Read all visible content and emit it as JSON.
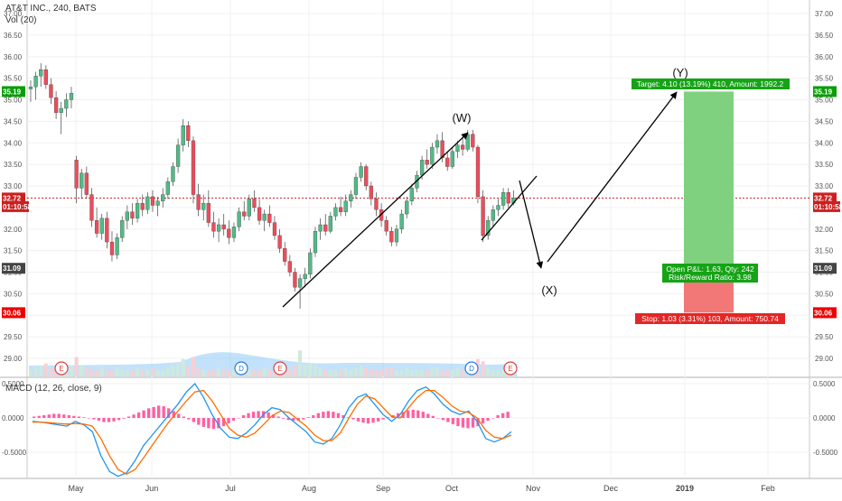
{
  "header": {
    "title": "AT&T INC., 240, BATS",
    "volume_label": "Vol (20)"
  },
  "macd_header": {
    "label": "MACD (12, 26, close, 9)"
  },
  "price_axis": {
    "ticks": [
      "37.00",
      "36.50",
      "36.00",
      "35.50",
      "35.00",
      "34.50",
      "34.00",
      "33.50",
      "33.00",
      "32.50",
      "32.00",
      "31.50",
      "31.00",
      "30.50",
      "30.00",
      "29.50",
      "29.00"
    ],
    "tags": [
      {
        "label": "35.19",
        "value": 35.19,
        "color": "#0a9e0a"
      },
      {
        "label": "32.72",
        "value": 32.72,
        "color": "#cc2020"
      },
      {
        "label": "01:10:58",
        "value": 32.52,
        "color": "#cc2020"
      },
      {
        "label": "31.09",
        "value": 31.09,
        "color": "#444444"
      },
      {
        "label": "30.06",
        "value": 30.06,
        "color": "#ee0000"
      }
    ]
  },
  "macd_axis": {
    "ticks": [
      "0.5000",
      "0.0000",
      "-0.5000"
    ]
  },
  "time_axis": {
    "labels": [
      "May",
      "Jun",
      "Jul",
      "Aug",
      "Sep",
      "Oct",
      "Nov",
      "Dec",
      "2019",
      "Feb"
    ]
  },
  "events": [
    {
      "label": "E",
      "color": "#e04040",
      "x": 68
    },
    {
      "label": "D",
      "color": "#2a7be0",
      "x": 267
    },
    {
      "label": "E",
      "color": "#e04040",
      "x": 310
    },
    {
      "label": "D",
      "color": "#2a7be0",
      "x": 522
    },
    {
      "label": "E",
      "color": "#e04040",
      "x": 565
    }
  ],
  "annotations": {
    "wave_w": "(W)",
    "wave_x": "(X)",
    "wave_y": "(Y)",
    "target_label": "Target: 4.10 (13.19%) 410, Amount: 1992.2",
    "position_label_1": "Open P&L: 1.63, Qty: 242",
    "position_label_2": "Risk/Reward Ratio: 3.98",
    "stop_label": "Stop: 1.03 (3.31%) 103, Amount: 750.74"
  },
  "colors": {
    "up": "#53b987",
    "down": "#eb4d5c",
    "target_zone": "#7fd17f",
    "stop_zone": "#f27777",
    "macd_line": "#2196f3",
    "signal_line": "#ff6d00",
    "histogram": "#ff5fa2",
    "volume": "#90caf9"
  },
  "chart_data": [
    {
      "type": "candlestick",
      "title": "AT&T INC., 240, BATS",
      "ylim": [
        28.8,
        37.1
      ],
      "last_price": 32.72,
      "ohlc": [
        [
          35.25,
          35.45,
          34.95,
          35.3
        ],
        [
          35.3,
          35.65,
          35.0,
          35.55
        ],
        [
          35.55,
          35.85,
          35.3,
          35.7
        ],
        [
          35.7,
          35.8,
          35.25,
          35.35
        ],
        [
          35.35,
          35.5,
          34.9,
          35.05
        ],
        [
          35.05,
          35.2,
          34.55,
          34.7
        ],
        [
          34.7,
          34.95,
          34.2,
          34.8
        ],
        [
          34.8,
          35.15,
          34.6,
          35.0
        ],
        [
          35.0,
          35.3,
          34.8,
          35.15
        ],
        [
          33.6,
          33.7,
          32.6,
          32.95
        ],
        [
          32.95,
          33.4,
          32.7,
          33.3
        ],
        [
          33.3,
          33.45,
          32.7,
          32.8
        ],
        [
          32.8,
          32.95,
          32.05,
          32.2
        ],
        [
          32.2,
          32.5,
          31.8,
          31.9
        ],
        [
          31.9,
          32.35,
          31.75,
          32.25
        ],
        [
          32.25,
          32.4,
          31.55,
          31.7
        ],
        [
          31.7,
          31.95,
          31.25,
          31.4
        ],
        [
          31.4,
          31.9,
          31.3,
          31.8
        ],
        [
          31.8,
          32.3,
          31.7,
          32.2
        ],
        [
          32.2,
          32.55,
          32.0,
          32.4
        ],
        [
          32.4,
          32.6,
          32.1,
          32.25
        ],
        [
          32.25,
          32.7,
          32.15,
          32.6
        ],
        [
          32.6,
          32.8,
          32.3,
          32.45
        ],
        [
          32.45,
          32.85,
          32.35,
          32.75
        ],
        [
          32.75,
          32.9,
          32.4,
          32.55
        ],
        [
          32.55,
          32.75,
          32.3,
          32.65
        ],
        [
          32.65,
          32.95,
          32.5,
          32.8
        ],
        [
          32.8,
          33.2,
          32.7,
          33.1
        ],
        [
          33.1,
          33.55,
          33.0,
          33.45
        ],
        [
          33.45,
          34.1,
          33.3,
          33.95
        ],
        [
          33.95,
          34.55,
          33.8,
          34.4
        ],
        [
          34.4,
          34.5,
          33.9,
          34.05
        ],
        [
          34.05,
          34.15,
          32.6,
          32.8
        ],
        [
          32.8,
          33.05,
          32.3,
          32.45
        ],
        [
          32.45,
          32.8,
          32.2,
          32.6
        ],
        [
          32.6,
          32.9,
          32.05,
          32.15
        ],
        [
          32.15,
          32.4,
          31.8,
          31.95
        ],
        [
          31.95,
          32.25,
          31.7,
          32.1
        ],
        [
          32.1,
          32.35,
          31.85,
          32.0
        ],
        [
          32.0,
          32.2,
          31.65,
          31.8
        ],
        [
          31.8,
          32.15,
          31.7,
          32.05
        ],
        [
          32.05,
          32.5,
          31.95,
          32.4
        ],
        [
          32.4,
          32.65,
          32.2,
          32.3
        ],
        [
          32.3,
          32.8,
          32.2,
          32.7
        ],
        [
          32.7,
          32.9,
          32.4,
          32.5
        ],
        [
          32.5,
          32.7,
          32.1,
          32.2
        ],
        [
          32.2,
          32.45,
          31.95,
          32.35
        ],
        [
          32.35,
          32.55,
          32.05,
          32.15
        ],
        [
          32.15,
          32.3,
          31.75,
          31.85
        ],
        [
          31.85,
          32.0,
          31.45,
          31.55
        ],
        [
          31.55,
          31.7,
          31.15,
          31.25
        ],
        [
          31.25,
          31.4,
          30.9,
          31.0
        ],
        [
          31.0,
          31.1,
          30.55,
          30.65
        ],
        [
          30.65,
          30.95,
          30.15,
          30.85
        ],
        [
          30.85,
          31.1,
          30.65,
          30.95
        ],
        [
          30.95,
          31.55,
          30.85,
          31.45
        ],
        [
          31.45,
          32.05,
          31.35,
          31.95
        ],
        [
          31.95,
          32.25,
          31.75,
          32.1
        ],
        [
          32.1,
          32.35,
          31.85,
          31.95
        ],
        [
          31.95,
          32.4,
          31.9,
          32.3
        ],
        [
          32.3,
          32.6,
          32.2,
          32.5
        ],
        [
          32.5,
          32.75,
          32.3,
          32.4
        ],
        [
          32.4,
          32.8,
          32.3,
          32.65
        ],
        [
          32.65,
          32.9,
          32.5,
          32.8
        ],
        [
          32.8,
          33.3,
          32.7,
          33.2
        ],
        [
          33.2,
          33.55,
          33.1,
          33.45
        ],
        [
          33.45,
          33.5,
          32.9,
          33.0
        ],
        [
          33.0,
          33.1,
          32.55,
          32.7
        ],
        [
          32.7,
          32.85,
          32.3,
          32.45
        ],
        [
          32.45,
          32.6,
          32.05,
          32.2
        ],
        [
          32.2,
          32.3,
          31.85,
          31.95
        ],
        [
          31.95,
          32.05,
          31.6,
          31.7
        ],
        [
          31.7,
          32.1,
          31.6,
          32.0
        ],
        [
          32.0,
          32.45,
          31.9,
          32.35
        ],
        [
          32.35,
          32.75,
          32.25,
          32.65
        ],
        [
          32.65,
          33.05,
          32.55,
          32.95
        ],
        [
          32.95,
          33.35,
          32.85,
          33.25
        ],
        [
          33.25,
          33.7,
          33.15,
          33.6
        ],
        [
          33.6,
          33.85,
          33.4,
          33.5
        ],
        [
          33.5,
          34.0,
          33.4,
          33.9
        ],
        [
          33.9,
          34.2,
          33.75,
          34.05
        ],
        [
          34.05,
          34.25,
          33.55,
          33.65
        ],
        [
          33.65,
          33.8,
          33.35,
          33.45
        ],
        [
          33.45,
          33.9,
          33.4,
          33.8
        ],
        [
          33.8,
          34.05,
          33.65,
          33.95
        ],
        [
          33.95,
          34.15,
          33.7,
          33.85
        ],
        [
          33.85,
          34.3,
          33.8,
          34.2
        ],
        [
          34.2,
          34.3,
          33.8,
          33.9
        ],
        [
          33.9,
          33.95,
          32.6,
          32.75
        ],
        [
          32.75,
          32.9,
          31.7,
          31.85
        ],
        [
          31.85,
          32.3,
          31.75,
          32.2
        ],
        [
          32.2,
          32.55,
          32.05,
          32.45
        ],
        [
          32.45,
          32.7,
          32.3,
          32.55
        ],
        [
          32.55,
          32.95,
          32.45,
          32.85
        ],
        [
          32.85,
          32.95,
          32.5,
          32.6
        ],
        [
          32.6,
          32.9,
          32.55,
          32.72
        ]
      ]
    },
    {
      "type": "bar",
      "title": "Vol (20)",
      "values": [
        3,
        4,
        5,
        6,
        4,
        3,
        3,
        4,
        5,
        9,
        5,
        4,
        3,
        3,
        4,
        3,
        3,
        4,
        3,
        3,
        3,
        4,
        3,
        3,
        4,
        3,
        3,
        4,
        5,
        6,
        8,
        5,
        9,
        4,
        3,
        3,
        3,
        4,
        3,
        3,
        3,
        4,
        3,
        3,
        3,
        3,
        4,
        3,
        3,
        4,
        4,
        3,
        5,
        12,
        5,
        6,
        5,
        4,
        3,
        3,
        3,
        3,
        4,
        3,
        4,
        5,
        4,
        3,
        3,
        3,
        4,
        4,
        3,
        3,
        4,
        3,
        3,
        3,
        3,
        4,
        4,
        3,
        3,
        3,
        4,
        3,
        3,
        4,
        8,
        7,
        4,
        3,
        3,
        3,
        3,
        3
      ],
      "ylim": [
        0,
        28
      ]
    },
    {
      "type": "line",
      "title": "MACD (12, 26, close, 9)",
      "ylim": [
        -0.9,
        0.6
      ],
      "series": [
        {
          "name": "MACD",
          "values": [
            -0.05,
            -0.06,
            -0.08,
            -0.1,
            -0.12,
            -0.05,
            -0.1,
            -0.2,
            -0.55,
            -0.78,
            -0.85,
            -0.8,
            -0.62,
            -0.4,
            -0.25,
            -0.1,
            0.05,
            0.2,
            0.38,
            0.5,
            0.3,
            0.05,
            -0.15,
            -0.28,
            -0.3,
            -0.22,
            -0.1,
            0.05,
            0.15,
            0.12,
            0.0,
            -0.1,
            -0.2,
            -0.35,
            -0.38,
            -0.3,
            -0.1,
            0.15,
            0.3,
            0.35,
            0.2,
            0.05,
            -0.05,
            0.05,
            0.25,
            0.4,
            0.45,
            0.35,
            0.2,
            0.1,
            0.05,
            0.1,
            -0.05,
            -0.3,
            -0.35,
            -0.3,
            -0.2
          ]
        },
        {
          "name": "Signal",
          "values": [
            -0.06,
            -0.06,
            -0.07,
            -0.08,
            -0.09,
            -0.08,
            -0.09,
            -0.12,
            -0.3,
            -0.55,
            -0.75,
            -0.82,
            -0.75,
            -0.58,
            -0.4,
            -0.22,
            -0.05,
            0.1,
            0.25,
            0.38,
            0.4,
            0.25,
            0.05,
            -0.15,
            -0.25,
            -0.28,
            -0.22,
            -0.1,
            0.03,
            0.1,
            0.08,
            -0.02,
            -0.12,
            -0.25,
            -0.33,
            -0.33,
            -0.22,
            0.0,
            0.2,
            0.32,
            0.28,
            0.15,
            0.02,
            0.0,
            0.15,
            0.3,
            0.4,
            0.4,
            0.3,
            0.18,
            0.1,
            0.08,
            0.0,
            -0.18,
            -0.28,
            -0.3,
            -0.25
          ]
        },
        {
          "name": "Histogram",
          "values": [
            0.02,
            0.03,
            0.04,
            0.05,
            0.06,
            0.06,
            0.05,
            0.04,
            0.03,
            0.02,
            0.01,
            0.0,
            -0.02,
            -0.04,
            -0.06,
            -0.06,
            -0.05,
            -0.03,
            -0.01,
            0.02,
            0.05,
            0.08,
            0.11,
            0.14,
            0.16,
            0.18,
            0.17,
            0.14,
            0.1,
            0.06,
            0.02,
            -0.02,
            -0.06,
            -0.1,
            -0.13,
            -0.15,
            -0.16,
            -0.15,
            -0.12,
            -0.08,
            -0.04,
            0.0,
            0.04,
            0.07,
            0.09,
            0.1,
            0.1,
            0.08,
            0.05,
            0.02,
            -0.01,
            -0.03,
            -0.04,
            -0.04,
            -0.02,
            0.01,
            0.04,
            0.07,
            0.09,
            0.1,
            0.09,
            0.07,
            0.04,
            0.01,
            -0.02,
            -0.05,
            -0.07,
            -0.08,
            -0.07,
            -0.05,
            -0.02,
            0.01,
            0.04,
            0.07,
            0.09,
            0.11,
            0.12,
            0.11,
            0.09,
            0.06,
            0.03,
            0.0,
            -0.03,
            -0.06,
            -0.09,
            -0.12,
            -0.14,
            -0.15,
            -0.14,
            -0.12,
            -0.08,
            -0.04,
            0.0,
            0.04,
            0.07,
            0.09
          ]
        }
      ]
    }
  ]
}
